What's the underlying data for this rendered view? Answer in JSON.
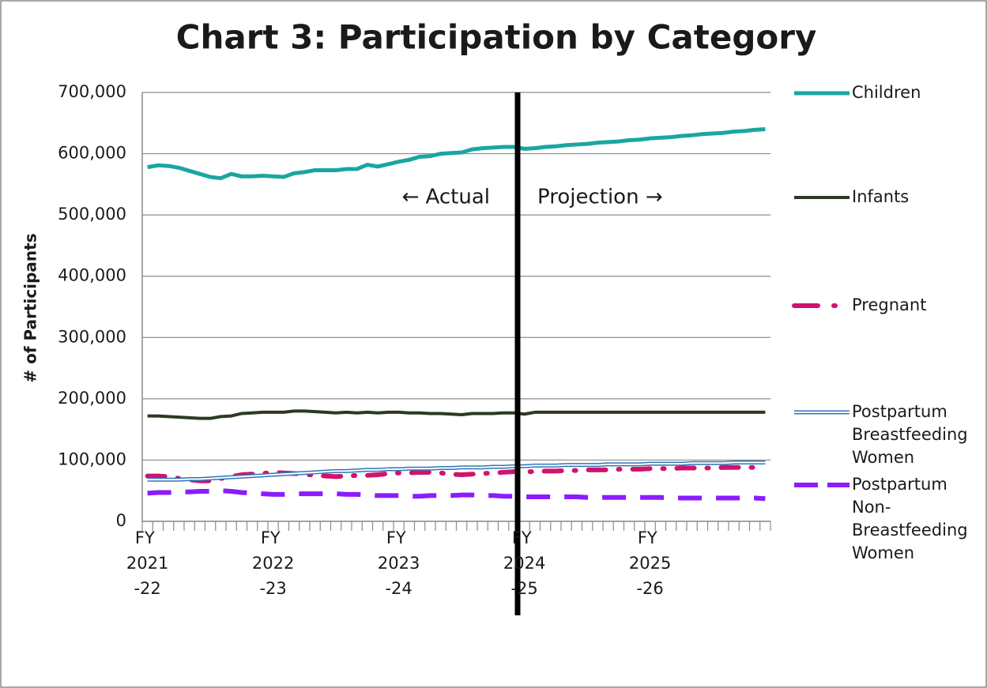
{
  "chart_data": {
    "type": "line",
    "title": "Chart 3: Participation by Category",
    "y_label": "# of Participants",
    "annotations": [
      "← Actual",
      "Projection →"
    ],
    "categories": [
      "FY 2021-22",
      null,
      null,
      null,
      null,
      null,
      null,
      null,
      null,
      null,
      null,
      null,
      "FY 2022-23",
      null,
      null,
      null,
      null,
      null,
      null,
      null,
      null,
      null,
      null,
      null,
      "FY 2023-24",
      null,
      null,
      null,
      null,
      null,
      null,
      null,
      null,
      null,
      null,
      null,
      "FY 2024-25",
      null,
      null,
      null,
      null,
      null,
      null,
      null,
      null,
      null,
      null,
      null,
      "FY 2025-26",
      null,
      null,
      null,
      null,
      null,
      null,
      null,
      null,
      null,
      null,
      null
    ],
    "ylim": [
      0,
      700000
    ],
    "yticks": [
      0,
      {
        "value": 100000,
        "label": "100,000"
      },
      {
        "value": 200000,
        "label": "200,000"
      },
      {
        "value": 300000,
        "label": "300,000"
      },
      {
        "value": 400000,
        "label": "400,000"
      },
      {
        "value": 500000,
        "label": "500,000"
      },
      {
        "value": 600000,
        "label": "600,000"
      },
      {
        "value": 700000,
        "label": "700,000"
      }
    ],
    "grid": true,
    "legend": "right",
    "series": [
      {
        "name": "Children",
        "color": "#1aa6a0",
        "style": "solid",
        "values": [
          578000,
          581000,
          580000,
          577000,
          572000,
          567000,
          562000,
          560000,
          567000,
          563000,
          563000,
          564000,
          563000,
          562000,
          568000,
          570000,
          573000,
          573000,
          573000,
          575000,
          575000,
          582000,
          579000,
          583000,
          587000,
          590000,
          595000,
          596000,
          600000,
          601000,
          602000,
          607000,
          609000,
          610000,
          611000,
          611000,
          608000,
          609000,
          611000,
          612000,
          614000,
          615000,
          616000,
          618000,
          619000,
          620000,
          622000,
          623000,
          625000,
          626000,
          627000,
          629000,
          630000,
          632000,
          633000,
          634000,
          636000,
          637000,
          639000,
          640000
        ]
      },
      {
        "name": "Infants",
        "color": "#2b3a21",
        "style": "solid",
        "values": [
          172000,
          172000,
          171000,
          170000,
          169000,
          168000,
          168000,
          171000,
          172000,
          176000,
          177000,
          178000,
          178000,
          178000,
          180000,
          180000,
          179000,
          178000,
          177000,
          178000,
          177000,
          178000,
          177000,
          178000,
          178000,
          177000,
          177000,
          176000,
          176000,
          175000,
          174000,
          176000,
          176000,
          176000,
          177000,
          177000,
          175000,
          178000,
          178000,
          178000,
          178000,
          178000,
          178000,
          178000,
          178000,
          178000,
          178000,
          178000,
          178000,
          178000,
          178000,
          178000,
          178000,
          178000,
          178000,
          178000,
          178000,
          178000,
          178000,
          178000
        ]
      },
      {
        "name": "Pregnant",
        "color": "#d0146e",
        "style": "dashdot",
        "values": [
          74000,
          74000,
          73000,
          70000,
          68000,
          66000,
          66000,
          70000,
          73000,
          76000,
          77000,
          78000,
          80000,
          79000,
          78000,
          77000,
          75000,
          74000,
          73000,
          74000,
          75000,
          75000,
          76000,
          78000,
          79000,
          79000,
          80000,
          80000,
          79000,
          77000,
          76000,
          77000,
          78000,
          79000,
          80000,
          81000,
          81000,
          81000,
          82000,
          82000,
          83000,
          83000,
          84000,
          84000,
          84000,
          85000,
          85000,
          85000,
          86000,
          86000,
          86000,
          87000,
          87000,
          87000,
          87000,
          88000,
          88000,
          88000,
          88000,
          88000
        ]
      },
      {
        "name": "Postpartum Breastfeeding Women",
        "color": "#2e75b6",
        "style": "double",
        "values": [
          68000,
          68000,
          68000,
          68000,
          69000,
          69000,
          70000,
          71000,
          72000,
          73000,
          74000,
          75000,
          76000,
          77000,
          78000,
          79000,
          80000,
          81000,
          82000,
          82000,
          83000,
          84000,
          84000,
          85000,
          85000,
          86000,
          86000,
          86000,
          87000,
          87000,
          88000,
          88000,
          88000,
          89000,
          89000,
          90000,
          90000,
          91000,
          91000,
          91000,
          92000,
          92000,
          92000,
          92000,
          93000,
          93000,
          93000,
          93000,
          94000,
          94000,
          94000,
          94000,
          95000,
          95000,
          95000,
          95000,
          96000,
          96000,
          96000,
          96000
        ]
      },
      {
        "name": "Postpartum Non-Breastfeeding Women",
        "color": "#8a1cff",
        "style": "dashed",
        "values": [
          46000,
          47000,
          47000,
          48000,
          48000,
          49000,
          49000,
          50000,
          49000,
          47000,
          46000,
          45000,
          44000,
          44000,
          45000,
          45000,
          45000,
          45000,
          45000,
          44000,
          44000,
          43000,
          42000,
          42000,
          42000,
          41000,
          41000,
          42000,
          42000,
          42000,
          43000,
          43000,
          42000,
          42000,
          41000,
          41000,
          40000,
          40000,
          40000,
          40000,
          40000,
          40000,
          39000,
          39000,
          39000,
          39000,
          39000,
          39000,
          39000,
          39000,
          38000,
          38000,
          38000,
          38000,
          38000,
          38000,
          38000,
          38000,
          38000,
          37000
        ]
      }
    ]
  }
}
